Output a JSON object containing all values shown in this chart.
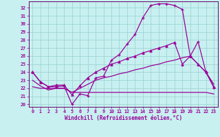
{
  "xlabel": "Windchill (Refroidissement éolien,°C)",
  "bg_color": "#c8f0f0",
  "grid_color": "#98cece",
  "line_color": "#990099",
  "spine_color": "#660066",
  "xlim": [
    -0.5,
    23.5
  ],
  "ylim": [
    19.7,
    32.8
  ],
  "yticks": [
    20,
    21,
    22,
    23,
    24,
    25,
    26,
    27,
    28,
    29,
    30,
    31,
    32
  ],
  "xticks": [
    0,
    1,
    2,
    3,
    4,
    5,
    6,
    7,
    8,
    9,
    10,
    11,
    12,
    13,
    14,
    15,
    16,
    17,
    18,
    19,
    20,
    21,
    22,
    23
  ],
  "line1_x": [
    0,
    1,
    2,
    3,
    4,
    5,
    6,
    7,
    8,
    9,
    10,
    11,
    12,
    13,
    14,
    15,
    16,
    17,
    18,
    19,
    20,
    21,
    22,
    23
  ],
  "line1_y": [
    24.0,
    22.8,
    22.2,
    22.2,
    22.3,
    20.0,
    21.3,
    21.1,
    23.3,
    23.5,
    25.5,
    26.2,
    27.5,
    28.7,
    30.8,
    32.3,
    32.5,
    32.5,
    32.3,
    31.8,
    26.0,
    27.8,
    24.0,
    22.1
  ],
  "line2_x": [
    0,
    1,
    2,
    3,
    4,
    5,
    6,
    7,
    8,
    9,
    10,
    11,
    12,
    13,
    14,
    15,
    16,
    17,
    18,
    19,
    20,
    21,
    22,
    23
  ],
  "line2_y": [
    24.0,
    22.8,
    22.2,
    22.4,
    22.4,
    21.2,
    22.3,
    23.3,
    24.0,
    24.5,
    25.0,
    25.3,
    25.7,
    26.0,
    26.4,
    26.7,
    27.0,
    27.3,
    27.7,
    25.0,
    26.0,
    25.0,
    24.0,
    22.2
  ],
  "line3_x": [
    0,
    1,
    2,
    3,
    4,
    5,
    6,
    7,
    8,
    9,
    10,
    11,
    12,
    13,
    14,
    15,
    16,
    17,
    18,
    19,
    20,
    21,
    22,
    23
  ],
  "line3_y": [
    23.0,
    22.3,
    21.8,
    22.0,
    22.0,
    21.5,
    22.0,
    22.5,
    23.0,
    23.3,
    23.5,
    23.8,
    24.0,
    24.3,
    24.5,
    24.8,
    25.0,
    25.3,
    25.5,
    25.8,
    26.0,
    25.0,
    24.0,
    22.5
  ],
  "line4_x": [
    0,
    1,
    2,
    3,
    4,
    5,
    6,
    7,
    8,
    9,
    10,
    11,
    12,
    13,
    14,
    15,
    16,
    17,
    18,
    19,
    20,
    21,
    22,
    23
  ],
  "line4_y": [
    22.2,
    22.0,
    22.0,
    22.0,
    22.0,
    21.5,
    21.5,
    21.5,
    21.5,
    21.5,
    21.5,
    21.5,
    21.5,
    21.5,
    21.5,
    21.5,
    21.5,
    21.5,
    21.5,
    21.5,
    21.5,
    21.5,
    21.5,
    21.3
  ]
}
